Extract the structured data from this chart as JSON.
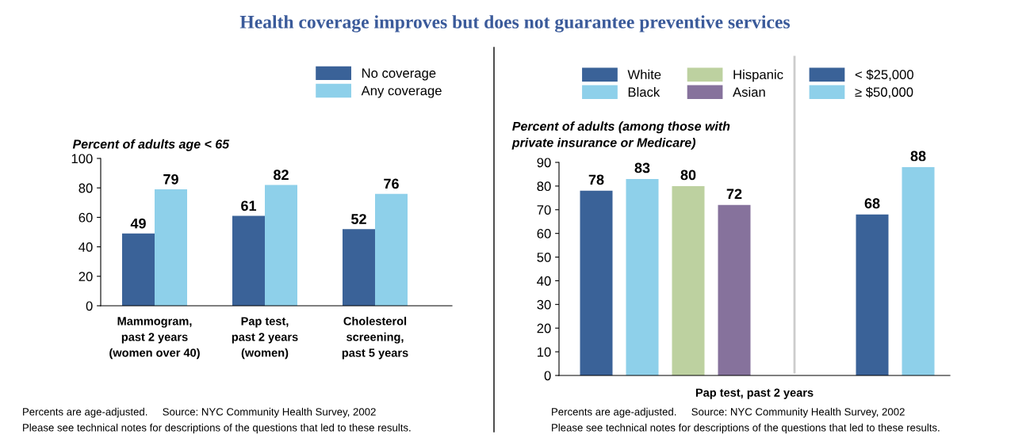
{
  "chart_data": [
    {
      "type": "bar",
      "title": "Health coverage improves but does not guarantee preventive services",
      "categories": [
        "Mammogram,\npast 2 years\n(women over 40)",
        "Pap test,\npast 2 years\n(women)",
        "Cholesterol\nscreening,\npast 5 years"
      ],
      "series": [
        {
          "name": "No coverage",
          "color": "#3a6298",
          "values": [
            49,
            61,
            52
          ]
        },
        {
          "name": "Any coverage",
          "color": "#8ed0ea",
          "values": [
            79,
            82,
            76
          ]
        }
      ],
      "ylim": [
        0,
        100
      ],
      "yticks": [
        0,
        20,
        40,
        60,
        80,
        100
      ],
      "ylabel": "Percent of adults age < 65",
      "data_labels": true,
      "legend": "top right",
      "annotations": [
        "Percents are age-adjusted.     Source: NYC Community Health Survey, 2002",
        "Please see technical notes for descriptions of the questions that led to these results."
      ]
    },
    {
      "type": "bar",
      "categories": [
        null,
        null,
        null,
        null,
        null,
        null,
        null,
        null
      ],
      "series": [
        {
          "name": "White",
          "color": "#3a6298",
          "values": [
            78,
            null,
            null,
            null,
            null,
            null,
            null,
            null
          ]
        },
        {
          "name": "Black",
          "color": "#8ed0ea",
          "values": [
            null,
            83,
            null,
            null,
            null,
            null,
            null,
            null
          ]
        },
        {
          "name": "Hispanic",
          "color": "#bdd1a0",
          "values": [
            null,
            null,
            80,
            null,
            null,
            null,
            null,
            null
          ]
        },
        {
          "name": "Asian",
          "color": "#86729c",
          "values": [
            null,
            null,
            null,
            72,
            null,
            null,
            null,
            null
          ]
        },
        {
          "name": "< $25,000",
          "color": "#3a6298",
          "values": [
            null,
            null,
            null,
            null,
            null,
            null,
            68,
            null
          ]
        },
        {
          "name": "≥ $50,000",
          "color": "#8ed0ea",
          "values": [
            null,
            null,
            null,
            null,
            null,
            null,
            null,
            88
          ]
        }
      ],
      "ylim": [
        0,
        90
      ],
      "yticks": [
        0,
        10,
        20,
        30,
        40,
        50,
        60,
        70,
        80,
        90
      ],
      "ylabel": "Percent of adults (among those with\nprivate insurance or Medicare)",
      "xlabel": "Pap test, past 2 years",
      "data_labels": true,
      "legend": "top",
      "annotations": [
        "Percents are age-adjusted.     Source: NYC Community Health Survey, 2002",
        "Please see technical notes for descriptions of the questions that led to these results."
      ]
    }
  ]
}
